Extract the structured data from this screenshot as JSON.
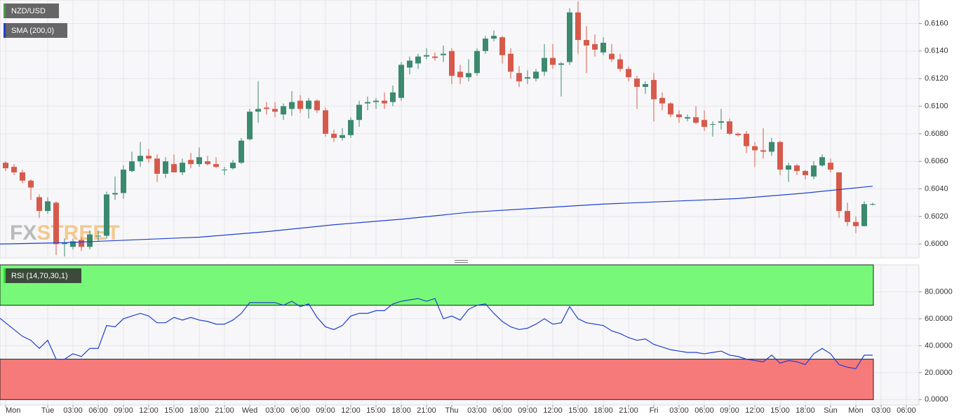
{
  "chart_data": [
    {
      "type": "candlestick",
      "title": "NZD/USD",
      "watermark": [
        "FX",
        "STREET"
      ],
      "xlim": [
        0.333,
        109.5
      ],
      "ylim": [
        0.599,
        0.6177
      ],
      "grid": true,
      "yticks": [
        {
          "value": 0.6,
          "label": "0.6000"
        },
        {
          "value": 0.602,
          "label": "0.6020"
        },
        {
          "value": 0.604,
          "label": "0.6040"
        },
        {
          "value": 0.606,
          "label": "0.6060"
        },
        {
          "value": 0.608,
          "label": "0.6080"
        },
        {
          "value": 0.61,
          "label": "0.6100"
        },
        {
          "value": 0.612,
          "label": "0.6120"
        },
        {
          "value": 0.614,
          "label": "0.6140"
        },
        {
          "value": 0.616,
          "label": "0.6160"
        }
      ],
      "up_color": "#3b8a6d",
      "down_color": "#d65a4b",
      "series": [
        {
          "name": "NZD/USD",
          "open": [
            0.6055,
            0.6059,
            0.6056,
            0.6052,
            0.6046,
            0.6034,
            0.6024,
            0.603,
            0.6,
            0.5998,
            0.6003,
            0.5998,
            0.6006,
            0.6006,
            0.6036,
            0.6037,
            0.6053,
            0.606,
            0.6064,
            0.6062,
            0.6051,
            0.6058,
            0.6052,
            0.6061,
            0.6058,
            0.606,
            0.6058,
            0.6054,
            0.6055,
            0.6059,
            0.6076,
            0.6096,
            0.6099,
            0.6098,
            0.6094,
            0.6098,
            0.6104,
            0.6098,
            0.6104,
            0.6097,
            0.608,
            0.6077,
            0.6079,
            0.609,
            0.6102,
            0.6103,
            0.6104,
            0.6103,
            0.6106,
            0.6128,
            0.6131,
            0.6136,
            0.6136,
            0.6137,
            0.614,
            0.6125,
            0.6121,
            0.6124,
            0.614,
            0.6149,
            0.615,
            0.6138,
            0.6124,
            0.612,
            0.612,
            0.6125,
            0.6135,
            0.613,
            0.6132,
            0.6168,
            0.6148,
            0.6145,
            0.6139,
            0.6138,
            0.6134,
            0.6127,
            0.612,
            0.6114,
            0.6119,
            0.6106,
            0.6102,
            0.6094,
            0.6091,
            0.6092,
            0.609,
            0.6087,
            0.6088,
            0.6089,
            0.608,
            0.608,
            0.6071,
            0.6068,
            0.6067,
            0.6074,
            0.6054,
            0.6057,
            0.6053,
            0.6049,
            0.6057,
            0.6059,
            0.6052,
            0.6024,
            0.6016,
            0.6013,
            0.6029
          ],
          "high": [
            0.6061,
            0.606,
            0.6058,
            0.6054,
            0.6047,
            0.6036,
            0.6034,
            0.6031,
            0.6004,
            0.6004,
            0.6005,
            0.601,
            0.601,
            0.6038,
            0.6049,
            0.6057,
            0.6067,
            0.6074,
            0.6069,
            0.6065,
            0.6063,
            0.6065,
            0.6062,
            0.6066,
            0.607,
            0.6064,
            0.6063,
            0.6056,
            0.6061,
            0.6077,
            0.6098,
            0.6118,
            0.6103,
            0.6103,
            0.6102,
            0.6111,
            0.6108,
            0.6106,
            0.6105,
            0.6099,
            0.6083,
            0.6084,
            0.6092,
            0.6104,
            0.6107,
            0.6106,
            0.611,
            0.6115,
            0.6132,
            0.6136,
            0.6138,
            0.6142,
            0.6139,
            0.6144,
            0.6142,
            0.613,
            0.6134,
            0.6142,
            0.6151,
            0.6155,
            0.6151,
            0.6142,
            0.6129,
            0.6126,
            0.6127,
            0.6145,
            0.6145,
            0.6132,
            0.6171,
            0.6176,
            0.6158,
            0.6152,
            0.615,
            0.6145,
            0.6138,
            0.6129,
            0.6122,
            0.6118,
            0.6124,
            0.611,
            0.6103,
            0.6097,
            0.6094,
            0.61,
            0.6097,
            0.6089,
            0.6098,
            0.6091,
            0.6081,
            0.6082,
            0.6074,
            0.6084,
            0.6077,
            0.6075,
            0.6059,
            0.6058,
            0.6054,
            0.606,
            0.6065,
            0.6062,
            0.6052,
            0.603,
            0.602,
            0.6031,
            0.603
          ],
          "low": [
            0.6054,
            0.6053,
            0.605,
            0.6044,
            0.6032,
            0.6019,
            0.6022,
            0.5992,
            0.5991,
            0.5996,
            0.5995,
            0.5996,
            0.6002,
            0.6004,
            0.6032,
            0.6033,
            0.6052,
            0.6056,
            0.6059,
            0.6045,
            0.6048,
            0.6052,
            0.605,
            0.6055,
            0.6056,
            0.6057,
            0.6055,
            0.605,
            0.6054,
            0.6058,
            0.6075,
            0.6088,
            0.6094,
            0.6092,
            0.609,
            0.6093,
            0.6095,
            0.6091,
            0.6095,
            0.6078,
            0.6074,
            0.6075,
            0.6077,
            0.6085,
            0.6097,
            0.6098,
            0.6098,
            0.61,
            0.6104,
            0.6123,
            0.6127,
            0.6134,
            0.6133,
            0.6132,
            0.6116,
            0.6116,
            0.6118,
            0.6122,
            0.6138,
            0.6147,
            0.6131,
            0.612,
            0.6114,
            0.6116,
            0.6118,
            0.6122,
            0.6127,
            0.6107,
            0.613,
            0.6138,
            0.6124,
            0.6136,
            0.6137,
            0.6132,
            0.6125,
            0.6118,
            0.6098,
            0.6109,
            0.6089,
            0.6097,
            0.6092,
            0.6088,
            0.6089,
            0.6087,
            0.6082,
            0.6078,
            0.6083,
            0.6079,
            0.6078,
            0.6066,
            0.6056,
            0.6062,
            0.6064,
            0.605,
            0.6045,
            0.605,
            0.6047,
            0.6047,
            0.6056,
            0.6052,
            0.6019,
            0.6013,
            0.6008,
            0.6013,
            0.6028
          ],
          "close": [
            0.6059,
            0.6055,
            0.6052,
            0.6046,
            0.6041,
            0.6024,
            0.6031,
            0.6,
            0.6001,
            0.6002,
            0.5998,
            0.6007,
            0.6006,
            0.6036,
            0.6037,
            0.6054,
            0.606,
            0.6064,
            0.6062,
            0.6051,
            0.606,
            0.6052,
            0.6059,
            0.6058,
            0.6063,
            0.6058,
            0.6056,
            0.6054,
            0.6059,
            0.6075,
            0.6096,
            0.6098,
            0.6098,
            0.6096,
            0.61,
            0.6103,
            0.6098,
            0.6104,
            0.6097,
            0.608,
            0.6077,
            0.6079,
            0.609,
            0.6101,
            0.6103,
            0.6104,
            0.6102,
            0.611,
            0.613,
            0.6133,
            0.6136,
            0.6137,
            0.6135,
            0.6138,
            0.6122,
            0.6121,
            0.6124,
            0.614,
            0.6149,
            0.6151,
            0.6137,
            0.6125,
            0.6118,
            0.6121,
            0.6125,
            0.6135,
            0.613,
            0.6131,
            0.6168,
            0.6148,
            0.6144,
            0.6141,
            0.6146,
            0.6134,
            0.6127,
            0.6121,
            0.6114,
            0.6116,
            0.6105,
            0.6102,
            0.6094,
            0.6092,
            0.6092,
            0.6088,
            0.6085,
            0.6087,
            0.6089,
            0.608,
            0.6079,
            0.6071,
            0.6068,
            0.6067,
            0.6074,
            0.6054,
            0.6057,
            0.6053,
            0.605,
            0.6057,
            0.6063,
            0.6054,
            0.6024,
            0.6016,
            0.6013,
            0.6029,
            0.6029
          ]
        },
        {
          "name": "SMA (200,0)",
          "type": "line",
          "color": "#1f3fd0",
          "x": [
            0,
            8,
            16,
            24,
            32,
            40,
            48,
            56,
            64,
            72,
            80,
            88,
            96,
            104
          ],
          "values": [
            0.6,
            0.6001,
            0.6003,
            0.6005,
            0.6009,
            0.6014,
            0.6018,
            0.6023,
            0.6026,
            0.6029,
            0.6031,
            0.6033,
            0.6037,
            0.6042
          ]
        }
      ]
    },
    {
      "type": "line",
      "title": "RSI (14,70,30,1)",
      "xlim": [
        0.333,
        109.5
      ],
      "ylim": [
        -4,
        100
      ],
      "grid": true,
      "yticks": [
        {
          "value": 0,
          "label": "0.0000"
        },
        {
          "value": 20,
          "label": "20.0000"
        },
        {
          "value": 40,
          "label": "40.0000"
        },
        {
          "value": 60,
          "label": "60.0000"
        },
        {
          "value": 80,
          "label": "80.0000"
        }
      ],
      "xticks": [
        {
          "value": 1,
          "label": "Mon"
        },
        {
          "value": 6,
          "label": "Tue"
        },
        {
          "value": 9,
          "label": "03:00"
        },
        {
          "value": 12,
          "label": "06:00"
        },
        {
          "value": 15,
          "label": "09:00"
        },
        {
          "value": 18,
          "label": "12:00"
        },
        {
          "value": 21,
          "label": "15:00"
        },
        {
          "value": 24,
          "label": "18:00"
        },
        {
          "value": 27,
          "label": "21:00"
        },
        {
          "value": 30,
          "label": "Wed"
        },
        {
          "value": 33,
          "label": "03:00"
        },
        {
          "value": 36,
          "label": "06:00"
        },
        {
          "value": 39,
          "label": "09:00"
        },
        {
          "value": 42,
          "label": "12:00"
        },
        {
          "value": 45,
          "label": "15:00"
        },
        {
          "value": 48,
          "label": "18:00"
        },
        {
          "value": 51,
          "label": "21:00"
        },
        {
          "value": 54,
          "label": "Thu"
        },
        {
          "value": 57,
          "label": "03:00"
        },
        {
          "value": 60,
          "label": "06:00"
        },
        {
          "value": 63,
          "label": "09:00"
        },
        {
          "value": 66,
          "label": "12:00"
        },
        {
          "value": 69,
          "label": "15:00"
        },
        {
          "value": 72,
          "label": "18:00"
        },
        {
          "value": 75,
          "label": "21:00"
        },
        {
          "value": 78,
          "label": "Fri"
        },
        {
          "value": 81,
          "label": "03:00"
        },
        {
          "value": 84,
          "label": "06:00"
        },
        {
          "value": 87,
          "label": "09:00"
        },
        {
          "value": 90,
          "label": "12:00"
        },
        {
          "value": 93,
          "label": "15:00"
        },
        {
          "value": 96,
          "label": "18:00"
        },
        {
          "value": 99,
          "label": "Sun"
        },
        {
          "value": 102,
          "label": "Mon"
        },
        {
          "value": 105,
          "label": "03:00"
        },
        {
          "value": 108,
          "label": "06:00"
        }
      ],
      "zones": [
        {
          "from": 70,
          "to": 100,
          "color": "#78f878"
        },
        {
          "from": 0,
          "to": 30,
          "color": "#f77a7a"
        }
      ],
      "series": [
        {
          "name": "RSI",
          "color": "#1f3fd0",
          "values": [
            62,
            57,
            52,
            47,
            44,
            38,
            44,
            30,
            30,
            34,
            32,
            38,
            38,
            55,
            54,
            60,
            62,
            64,
            62,
            57,
            57,
            61,
            59,
            61,
            59,
            58,
            56,
            56,
            59,
            64,
            72,
            72,
            72,
            72,
            70,
            73,
            69,
            71,
            61,
            54,
            52,
            55,
            62,
            64,
            64,
            66,
            66,
            71,
            73,
            74,
            75,
            73,
            75,
            60,
            62,
            59,
            67,
            70,
            71,
            64,
            58,
            54,
            52,
            53,
            56,
            60,
            56,
            57,
            69,
            60,
            57,
            56,
            55,
            51,
            49,
            46,
            44,
            45,
            41,
            39,
            37,
            36,
            35,
            35,
            34,
            35,
            36,
            33,
            32,
            30,
            29,
            28,
            33,
            27,
            29,
            28,
            26,
            34,
            38,
            34,
            26,
            24,
            23,
            33,
            33
          ]
        }
      ]
    }
  ]
}
